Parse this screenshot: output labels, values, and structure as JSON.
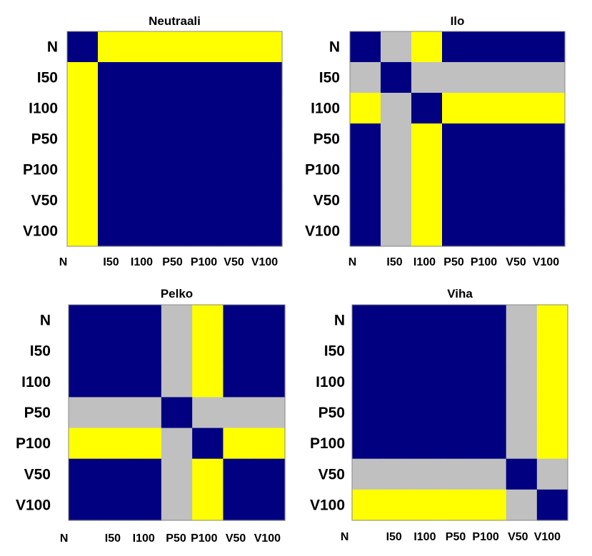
{
  "colors": {
    "blue": "#000080",
    "yellow": "#ffff00",
    "gray": "#c0c0c0",
    "border": "#888888"
  },
  "chart_data": [
    {
      "type": "heatmap",
      "title": "Neutraali",
      "rows": [
        "N",
        "I50",
        "I100",
        "P50",
        "P100",
        "V50",
        "V100"
      ],
      "cols": [
        "N",
        "I50",
        "I100",
        "P50",
        "P100",
        "V50",
        "V100"
      ],
      "matrix": [
        [
          "blue",
          "yellow",
          "yellow",
          "yellow",
          "yellow",
          "yellow",
          "yellow"
        ],
        [
          "yellow",
          "blue",
          "blue",
          "blue",
          "blue",
          "blue",
          "blue"
        ],
        [
          "yellow",
          "blue",
          "blue",
          "blue",
          "blue",
          "blue",
          "blue"
        ],
        [
          "yellow",
          "blue",
          "blue",
          "blue",
          "blue",
          "blue",
          "blue"
        ],
        [
          "yellow",
          "blue",
          "blue",
          "blue",
          "blue",
          "blue",
          "blue"
        ],
        [
          "yellow",
          "blue",
          "blue",
          "blue",
          "blue",
          "blue",
          "blue"
        ],
        [
          "yellow",
          "blue",
          "blue",
          "blue",
          "blue",
          "blue",
          "blue"
        ]
      ]
    },
    {
      "type": "heatmap",
      "title": "Ilo",
      "rows": [
        "N",
        "I50",
        "I100",
        "P50",
        "P100",
        "V50",
        "V100"
      ],
      "cols": [
        "N",
        "I50",
        "I100",
        "P50",
        "P100",
        "V50",
        "V100"
      ],
      "matrix": [
        [
          "blue",
          "gray",
          "yellow",
          "blue",
          "blue",
          "blue",
          "blue"
        ],
        [
          "gray",
          "blue",
          "gray",
          "gray",
          "gray",
          "gray",
          "gray"
        ],
        [
          "yellow",
          "gray",
          "blue",
          "yellow",
          "yellow",
          "yellow",
          "yellow"
        ],
        [
          "blue",
          "gray",
          "yellow",
          "blue",
          "blue",
          "blue",
          "blue"
        ],
        [
          "blue",
          "gray",
          "yellow",
          "blue",
          "blue",
          "blue",
          "blue"
        ],
        [
          "blue",
          "gray",
          "yellow",
          "blue",
          "blue",
          "blue",
          "blue"
        ],
        [
          "blue",
          "gray",
          "yellow",
          "blue",
          "blue",
          "blue",
          "blue"
        ]
      ]
    },
    {
      "type": "heatmap",
      "title": "Pelko",
      "rows": [
        "N",
        "I50",
        "I100",
        "P50",
        "P100",
        "V50",
        "V100"
      ],
      "cols": [
        "N",
        "I50",
        "I100",
        "P50",
        "P100",
        "V50",
        "V100"
      ],
      "matrix": [
        [
          "blue",
          "blue",
          "blue",
          "gray",
          "yellow",
          "blue",
          "blue"
        ],
        [
          "blue",
          "blue",
          "blue",
          "gray",
          "yellow",
          "blue",
          "blue"
        ],
        [
          "blue",
          "blue",
          "blue",
          "gray",
          "yellow",
          "blue",
          "blue"
        ],
        [
          "gray",
          "gray",
          "gray",
          "blue",
          "gray",
          "gray",
          "gray"
        ],
        [
          "yellow",
          "yellow",
          "yellow",
          "gray",
          "blue",
          "yellow",
          "yellow"
        ],
        [
          "blue",
          "blue",
          "blue",
          "gray",
          "yellow",
          "blue",
          "blue"
        ],
        [
          "blue",
          "blue",
          "blue",
          "gray",
          "yellow",
          "blue",
          "blue"
        ]
      ]
    },
    {
      "type": "heatmap",
      "title": "Viha",
      "rows": [
        "N",
        "I50",
        "I100",
        "P50",
        "P100",
        "V50",
        "V100"
      ],
      "cols": [
        "N",
        "I50",
        "I100",
        "P50",
        "P100",
        "V50",
        "V100"
      ],
      "matrix": [
        [
          "blue",
          "blue",
          "blue",
          "blue",
          "blue",
          "gray",
          "yellow"
        ],
        [
          "blue",
          "blue",
          "blue",
          "blue",
          "blue",
          "gray",
          "yellow"
        ],
        [
          "blue",
          "blue",
          "blue",
          "blue",
          "blue",
          "gray",
          "yellow"
        ],
        [
          "blue",
          "blue",
          "blue",
          "blue",
          "blue",
          "gray",
          "yellow"
        ],
        [
          "blue",
          "blue",
          "blue",
          "blue",
          "blue",
          "gray",
          "yellow"
        ],
        [
          "gray",
          "gray",
          "gray",
          "gray",
          "gray",
          "blue",
          "gray"
        ],
        [
          "yellow",
          "yellow",
          "yellow",
          "yellow",
          "yellow",
          "gray",
          "blue"
        ]
      ]
    }
  ]
}
